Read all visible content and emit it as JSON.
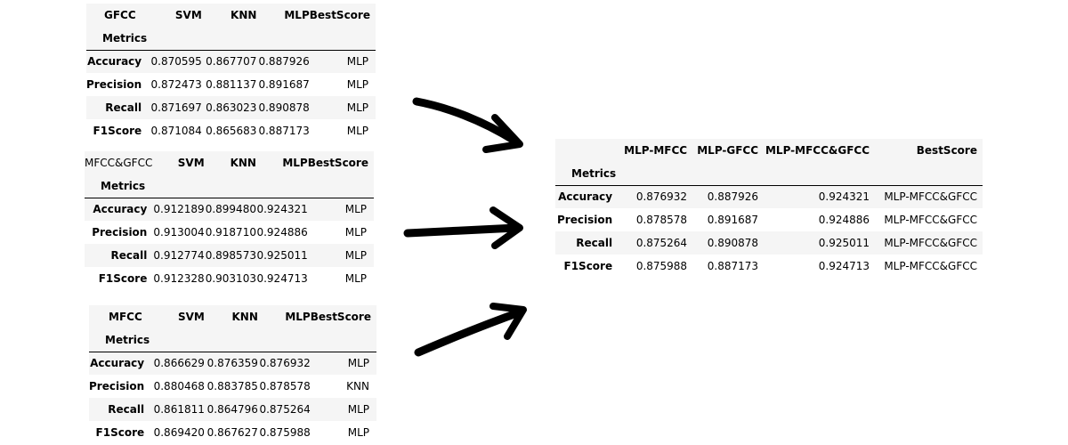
{
  "tables": [
    {
      "name": "GFCC",
      "index_label": "Metrics",
      "columns": [
        "SVM",
        "KNN",
        "MLP",
        "BestScore"
      ],
      "rows": [
        {
          "metric": "Accuracy",
          "values": [
            "0.870595",
            "0.867707",
            "0.887926",
            "MLP"
          ]
        },
        {
          "metric": "Precision",
          "values": [
            "0.872473",
            "0.881137",
            "0.891687",
            "MLP"
          ]
        },
        {
          "metric": "Recall",
          "values": [
            "0.871697",
            "0.863023",
            "0.890878",
            "MLP"
          ]
        },
        {
          "metric": "F1Score",
          "values": [
            "0.871084",
            "0.865683",
            "0.887173",
            "MLP"
          ]
        }
      ]
    },
    {
      "name": "MFCC&GFCC",
      "index_label": "Metrics",
      "columns": [
        "SVM",
        "KNN",
        "MLP",
        "BestScore"
      ],
      "rows": [
        {
          "metric": "Accuracy",
          "values": [
            "0.912189",
            "0.899480",
            "0.924321",
            "MLP"
          ]
        },
        {
          "metric": "Precision",
          "values": [
            "0.913004",
            "0.918710",
            "0.924886",
            "MLP"
          ]
        },
        {
          "metric": "Recall",
          "values": [
            "0.912774",
            "0.898573",
            "0.925011",
            "MLP"
          ]
        },
        {
          "metric": "F1Score",
          "values": [
            "0.912328",
            "0.903103",
            "0.924713",
            "MLP"
          ]
        }
      ]
    },
    {
      "name": "MFCC",
      "index_label": "Metrics",
      "columns": [
        "SVM",
        "KNN",
        "MLP",
        "BestScore"
      ],
      "rows": [
        {
          "metric": "Accuracy",
          "values": [
            "0.866629",
            "0.876359",
            "0.876932",
            "MLP"
          ]
        },
        {
          "metric": "Precision",
          "values": [
            "0.880468",
            "0.883785",
            "0.878578",
            "KNN"
          ]
        },
        {
          "metric": "Recall",
          "values": [
            "0.861811",
            "0.864796",
            "0.875264",
            "MLP"
          ]
        },
        {
          "metric": "F1Score",
          "values": [
            "0.869420",
            "0.867627",
            "0.875988",
            "MLP"
          ]
        }
      ]
    }
  ],
  "summary": {
    "name": "",
    "index_label": "Metrics",
    "columns": [
      "MLP-MFCC",
      "MLP-GFCC",
      "MLP-MFCC&GFCC",
      "BestScore"
    ],
    "rows": [
      {
        "metric": "Accuracy",
        "values": [
          "0.876932",
          "0.887926",
          "0.924321",
          "MLP-MFCC&GFCC"
        ]
      },
      {
        "metric": "Precision",
        "values": [
          "0.878578",
          "0.891687",
          "0.924886",
          "MLP-MFCC&GFCC"
        ]
      },
      {
        "metric": "Recall",
        "values": [
          "0.875264",
          "0.890878",
          "0.925011",
          "MLP-MFCC&GFCC"
        ]
      },
      {
        "metric": "F1Score",
        "values": [
          "0.875988",
          "0.887173",
          "0.924713",
          "MLP-MFCC&GFCC"
        ]
      }
    ]
  },
  "arrows": [
    {
      "icon": "hand-drawn-arrow-right-down-icon",
      "color": "#000000"
    },
    {
      "icon": "hand-drawn-arrow-right-icon",
      "color": "#000000"
    },
    {
      "icon": "hand-drawn-arrow-right-up-icon",
      "color": "#000000"
    }
  ]
}
